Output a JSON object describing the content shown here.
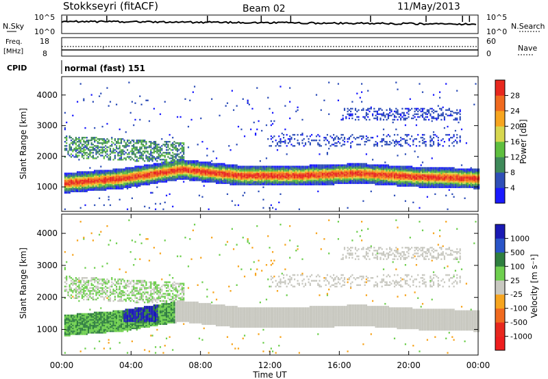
{
  "header": {
    "station": "Stokkseyri (fitACF)",
    "beam": "Beam 02",
    "date": "11/May/2013"
  },
  "noise_panel": {
    "left_label": "N.Sky",
    "right_label": "N.Search",
    "left_ticks": [
      "10^5",
      "10^0"
    ],
    "right_ticks": [
      "10^5",
      "10^0"
    ]
  },
  "freq_panel": {
    "left_label_top": "Freq.",
    "left_label_bottom": "[MHz]",
    "right_label": "Nave",
    "left_ticks": [
      "18",
      "8"
    ],
    "right_ticks": [
      "60",
      "0"
    ]
  },
  "cpid_panel": {
    "label": "CPID",
    "text": "normal (fast) 151"
  },
  "chart_data": [
    {
      "type": "heatmap",
      "name": "power",
      "ylabel": "Slant Range [km]",
      "ylim": [
        200,
        4600
      ],
      "y_ticks": [
        1000,
        2000,
        3000,
        4000
      ],
      "xlim": [
        "00:00",
        "24:00"
      ],
      "colorbar": {
        "label": "Power [dB]",
        "ticks": [
          "4",
          "8",
          "12",
          "16",
          "20",
          "24",
          "28"
        ],
        "colors": [
          "#1a1aff",
          "#2f4fb8",
          "#3f8a5a",
          "#5fbf3f",
          "#d7d74f",
          "#f7a51f",
          "#f06a1f",
          "#e8281e"
        ]
      },
      "bands": [
        {
          "name": "main-echo",
          "x_start_h": 0,
          "x_end_h": 24,
          "center_km": [
            1100,
            1250,
            1550,
            1350,
            1350,
            1420,
            1300,
            1250
          ],
          "width_km": 500,
          "peak_db": 28
        },
        {
          "name": "upper-scatter",
          "x_start_h": 0,
          "x_end_h": 6,
          "center_km": [
            2300,
            2100
          ],
          "width_km": 400,
          "peak_db": 12
        },
        {
          "name": "far-range-scatter",
          "x_start_h": 16,
          "x_end_h": 23,
          "center_km": [
            3300,
            3300
          ],
          "width_km": 200,
          "peak_db": 6
        }
      ]
    },
    {
      "type": "heatmap",
      "name": "velocity",
      "ylabel": "Slant Range [km]",
      "ylim": [
        200,
        4600
      ],
      "y_ticks": [
        1000,
        2000,
        3000,
        4000
      ],
      "xlim": [
        "00:00",
        "24:00"
      ],
      "x_ticks": [
        "00:00",
        "04:00",
        "08:00",
        "12:00",
        "16:00",
        "20:00",
        "00:00"
      ],
      "xlabel": "Time UT",
      "colorbar": {
        "label": "Velocity [m s⁻¹]",
        "ticks": [
          "1000",
          "500",
          "100",
          "25",
          "-25",
          "-100",
          "-500",
          "-1000"
        ],
        "colors": [
          "#1a1ab4",
          "#2a55c8",
          "#2f7f3f",
          "#6fcf4f",
          "#c8c8c0",
          "#f7a51f",
          "#f06a1f",
          "#e8281e",
          "#ee1e1e"
        ]
      }
    }
  ]
}
